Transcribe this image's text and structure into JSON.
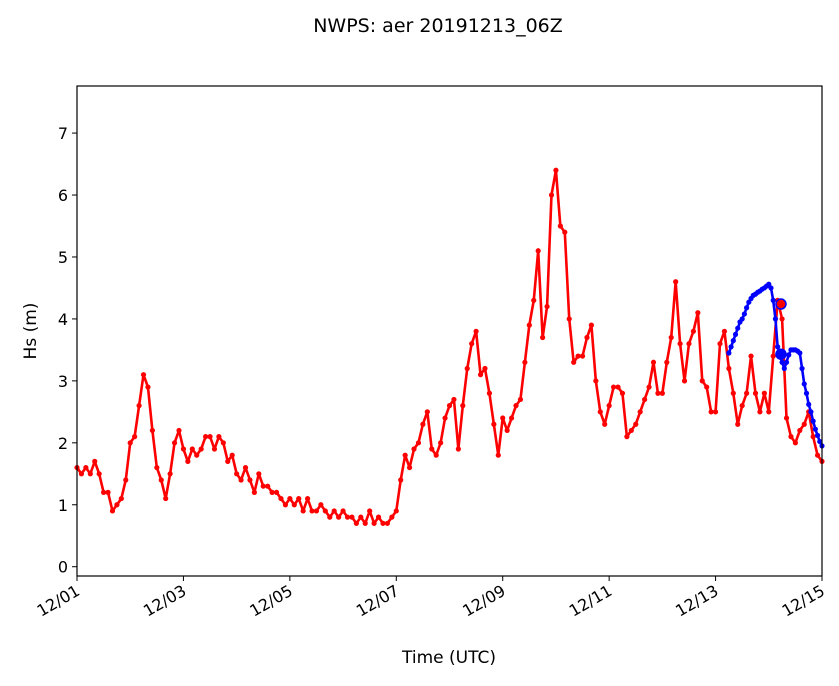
{
  "chart_data": {
    "type": "line",
    "title": "NWPS: aer 20191213_06Z",
    "xlabel": "Time (UTC)",
    "ylabel": "Hs (m)",
    "xlim_hours": [
      0,
      336
    ],
    "ylim": [
      -0.15,
      7.76
    ],
    "x_ticks": [
      {
        "hour": 0,
        "label": "12/01"
      },
      {
        "hour": 48,
        "label": "12/03"
      },
      {
        "hour": 96,
        "label": "12/05"
      },
      {
        "hour": 144,
        "label": "12/07"
      },
      {
        "hour": 192,
        "label": "12/09"
      },
      {
        "hour": 240,
        "label": "12/11"
      },
      {
        "hour": 288,
        "label": "12/13"
      },
      {
        "hour": 336,
        "label": "12/15"
      }
    ],
    "y_ticks": [
      0,
      1,
      2,
      3,
      4,
      5,
      6,
      7
    ],
    "grid": false,
    "series": [
      {
        "name": "red",
        "color": "#ff0000",
        "start_hour": 0,
        "step_hours": 2,
        "values": [
          1.6,
          1.5,
          1.6,
          1.5,
          1.7,
          1.5,
          1.2,
          1.2,
          0.9,
          1.0,
          1.1,
          1.4,
          2.0,
          2.1,
          2.6,
          3.1,
          2.9,
          2.2,
          1.6,
          1.4,
          1.1,
          1.5,
          2.0,
          2.2,
          1.9,
          1.7,
          1.9,
          1.8,
          1.9,
          2.1,
          2.1,
          1.9,
          2.1,
          2.0,
          1.7,
          1.8,
          1.5,
          1.4,
          1.6,
          1.4,
          1.2,
          1.5,
          1.3,
          1.3,
          1.2,
          1.2,
          1.1,
          1.0,
          1.1,
          1.0,
          1.1,
          0.9,
          1.1,
          0.9,
          0.9,
          1.0,
          0.9,
          0.8,
          0.9,
          0.8,
          0.9,
          0.8,
          0.8,
          0.7,
          0.8,
          0.7,
          0.9,
          0.7,
          0.8,
          0.7,
          0.7,
          0.8,
          0.9,
          1.4,
          1.8,
          1.6,
          1.9,
          2.0,
          2.3,
          2.5,
          1.9,
          1.8,
          2.0,
          2.4,
          2.6,
          2.7,
          1.9,
          2.6,
          3.2,
          3.6,
          3.8,
          3.1,
          3.2,
          2.8,
          2.3,
          1.8,
          2.4,
          2.2,
          2.4,
          2.6,
          2.7,
          3.3,
          3.9,
          4.3,
          5.1,
          3.7,
          4.2,
          6.0,
          6.4,
          5.5,
          5.4,
          4.0,
          3.3,
          3.4,
          3.4,
          3.7,
          3.9,
          3.0,
          2.5,
          2.3,
          2.6,
          2.9,
          2.9,
          2.8,
          2.1,
          2.2,
          2.3,
          2.5,
          2.7,
          2.9,
          3.3,
          2.8,
          2.8,
          3.3,
          3.7,
          4.6,
          3.6,
          3.0,
          3.6,
          3.8,
          4.1,
          3.0,
          2.9,
          2.5,
          2.5,
          3.6,
          3.8,
          3.2,
          2.8,
          2.3,
          2.6,
          2.8,
          3.4,
          2.8,
          2.5,
          2.8,
          2.5,
          3.4,
          4.3,
          4.0,
          2.4,
          2.1,
          2.0,
          2.2,
          2.3,
          2.5,
          2.1,
          1.8,
          1.7
        ]
      },
      {
        "name": "blue",
        "color": "#0000ff",
        "start_hour": 294,
        "step_hours": 1,
        "values": [
          3.45,
          3.55,
          3.65,
          3.75,
          3.85,
          3.95,
          4.0,
          4.08,
          4.18,
          4.27,
          4.33,
          4.38,
          4.4,
          4.43,
          4.45,
          4.48,
          4.5,
          4.53,
          4.56,
          4.5,
          4.3,
          4.0,
          3.55,
          3.42,
          3.3,
          3.2,
          3.3,
          3.42,
          3.5,
          3.5,
          3.5,
          3.48,
          3.45,
          3.2,
          2.95,
          2.8,
          2.62,
          2.5,
          2.35,
          2.22,
          2.12,
          2.02,
          1.95
        ]
      }
    ],
    "highlight_points": [
      {
        "name": "red-highlight",
        "hour": 317.5,
        "value": 4.24,
        "fill": "#ff0000",
        "stroke": "#0000ff"
      },
      {
        "name": "blue-highlight",
        "hour": 317.5,
        "value": 3.43,
        "fill": "#0000ff",
        "stroke": "#0000ff"
      }
    ]
  }
}
